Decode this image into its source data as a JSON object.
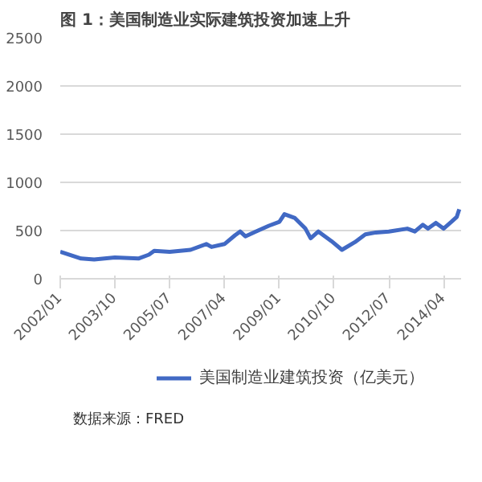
{
  "chart_data": {
    "type": "line",
    "title": "图 1：美国制造业实际建筑投资加速上升",
    "x": [
      "2002-01",
      "2002-09",
      "2003-02",
      "2003-10",
      "2004-07",
      "2004-11",
      "2005-01",
      "2005-07",
      "2006-03",
      "2006-09",
      "2006-11",
      "2007-04",
      "2007-08",
      "2007-10",
      "2007-12",
      "2008-04",
      "2008-09",
      "2009-01",
      "2009-03",
      "2009-07",
      "2009-11",
      "2010-01",
      "2010-04",
      "2010-09",
      "2011-01",
      "2011-06",
      "2011-10",
      "2012-02",
      "2012-07",
      "2013-02",
      "2013-05",
      "2013-08",
      "2013-10",
      "2014-01",
      "2014-04",
      "2014-07",
      "2014-09",
      "2014-10"
    ],
    "series": [
      {
        "name": "美国制造业建筑投资（亿美元）",
        "color": "#4169c4",
        "values": [
          280,
          210,
          200,
          220,
          210,
          250,
          290,
          280,
          300,
          360,
          330,
          360,
          450,
          490,
          440,
          490,
          550,
          590,
          670,
          630,
          520,
          420,
          490,
          390,
          300,
          380,
          460,
          480,
          490,
          520,
          490,
          560,
          520,
          580,
          520,
          590,
          640,
          720
        ]
      }
    ],
    "xlim": [
      "2002-01",
      "2014-11"
    ],
    "xticks": [
      {
        "value": "2002-01",
        "label": "2002/01"
      },
      {
        "value": "2003-10",
        "label": "2003/10"
      },
      {
        "value": "2005-07",
        "label": "2005/07"
      },
      {
        "value": "2007-04",
        "label": "2007/04"
      },
      {
        "value": "2009-01",
        "label": "2009/01"
      },
      {
        "value": "2010-10",
        "label": "2010/10"
      },
      {
        "value": "2012-07",
        "label": "2012/07"
      },
      {
        "value": "2014-04",
        "label": "2014/04"
      }
    ],
    "ylim": [
      0,
      2500
    ],
    "yticks": [
      0,
      500,
      1000,
      1500,
      2000,
      2500
    ],
    "grid": "y",
    "legend": "bottom",
    "marker": "none",
    "line_style": "solid",
    "annotations": [
      "数据来源：FRED"
    ]
  }
}
